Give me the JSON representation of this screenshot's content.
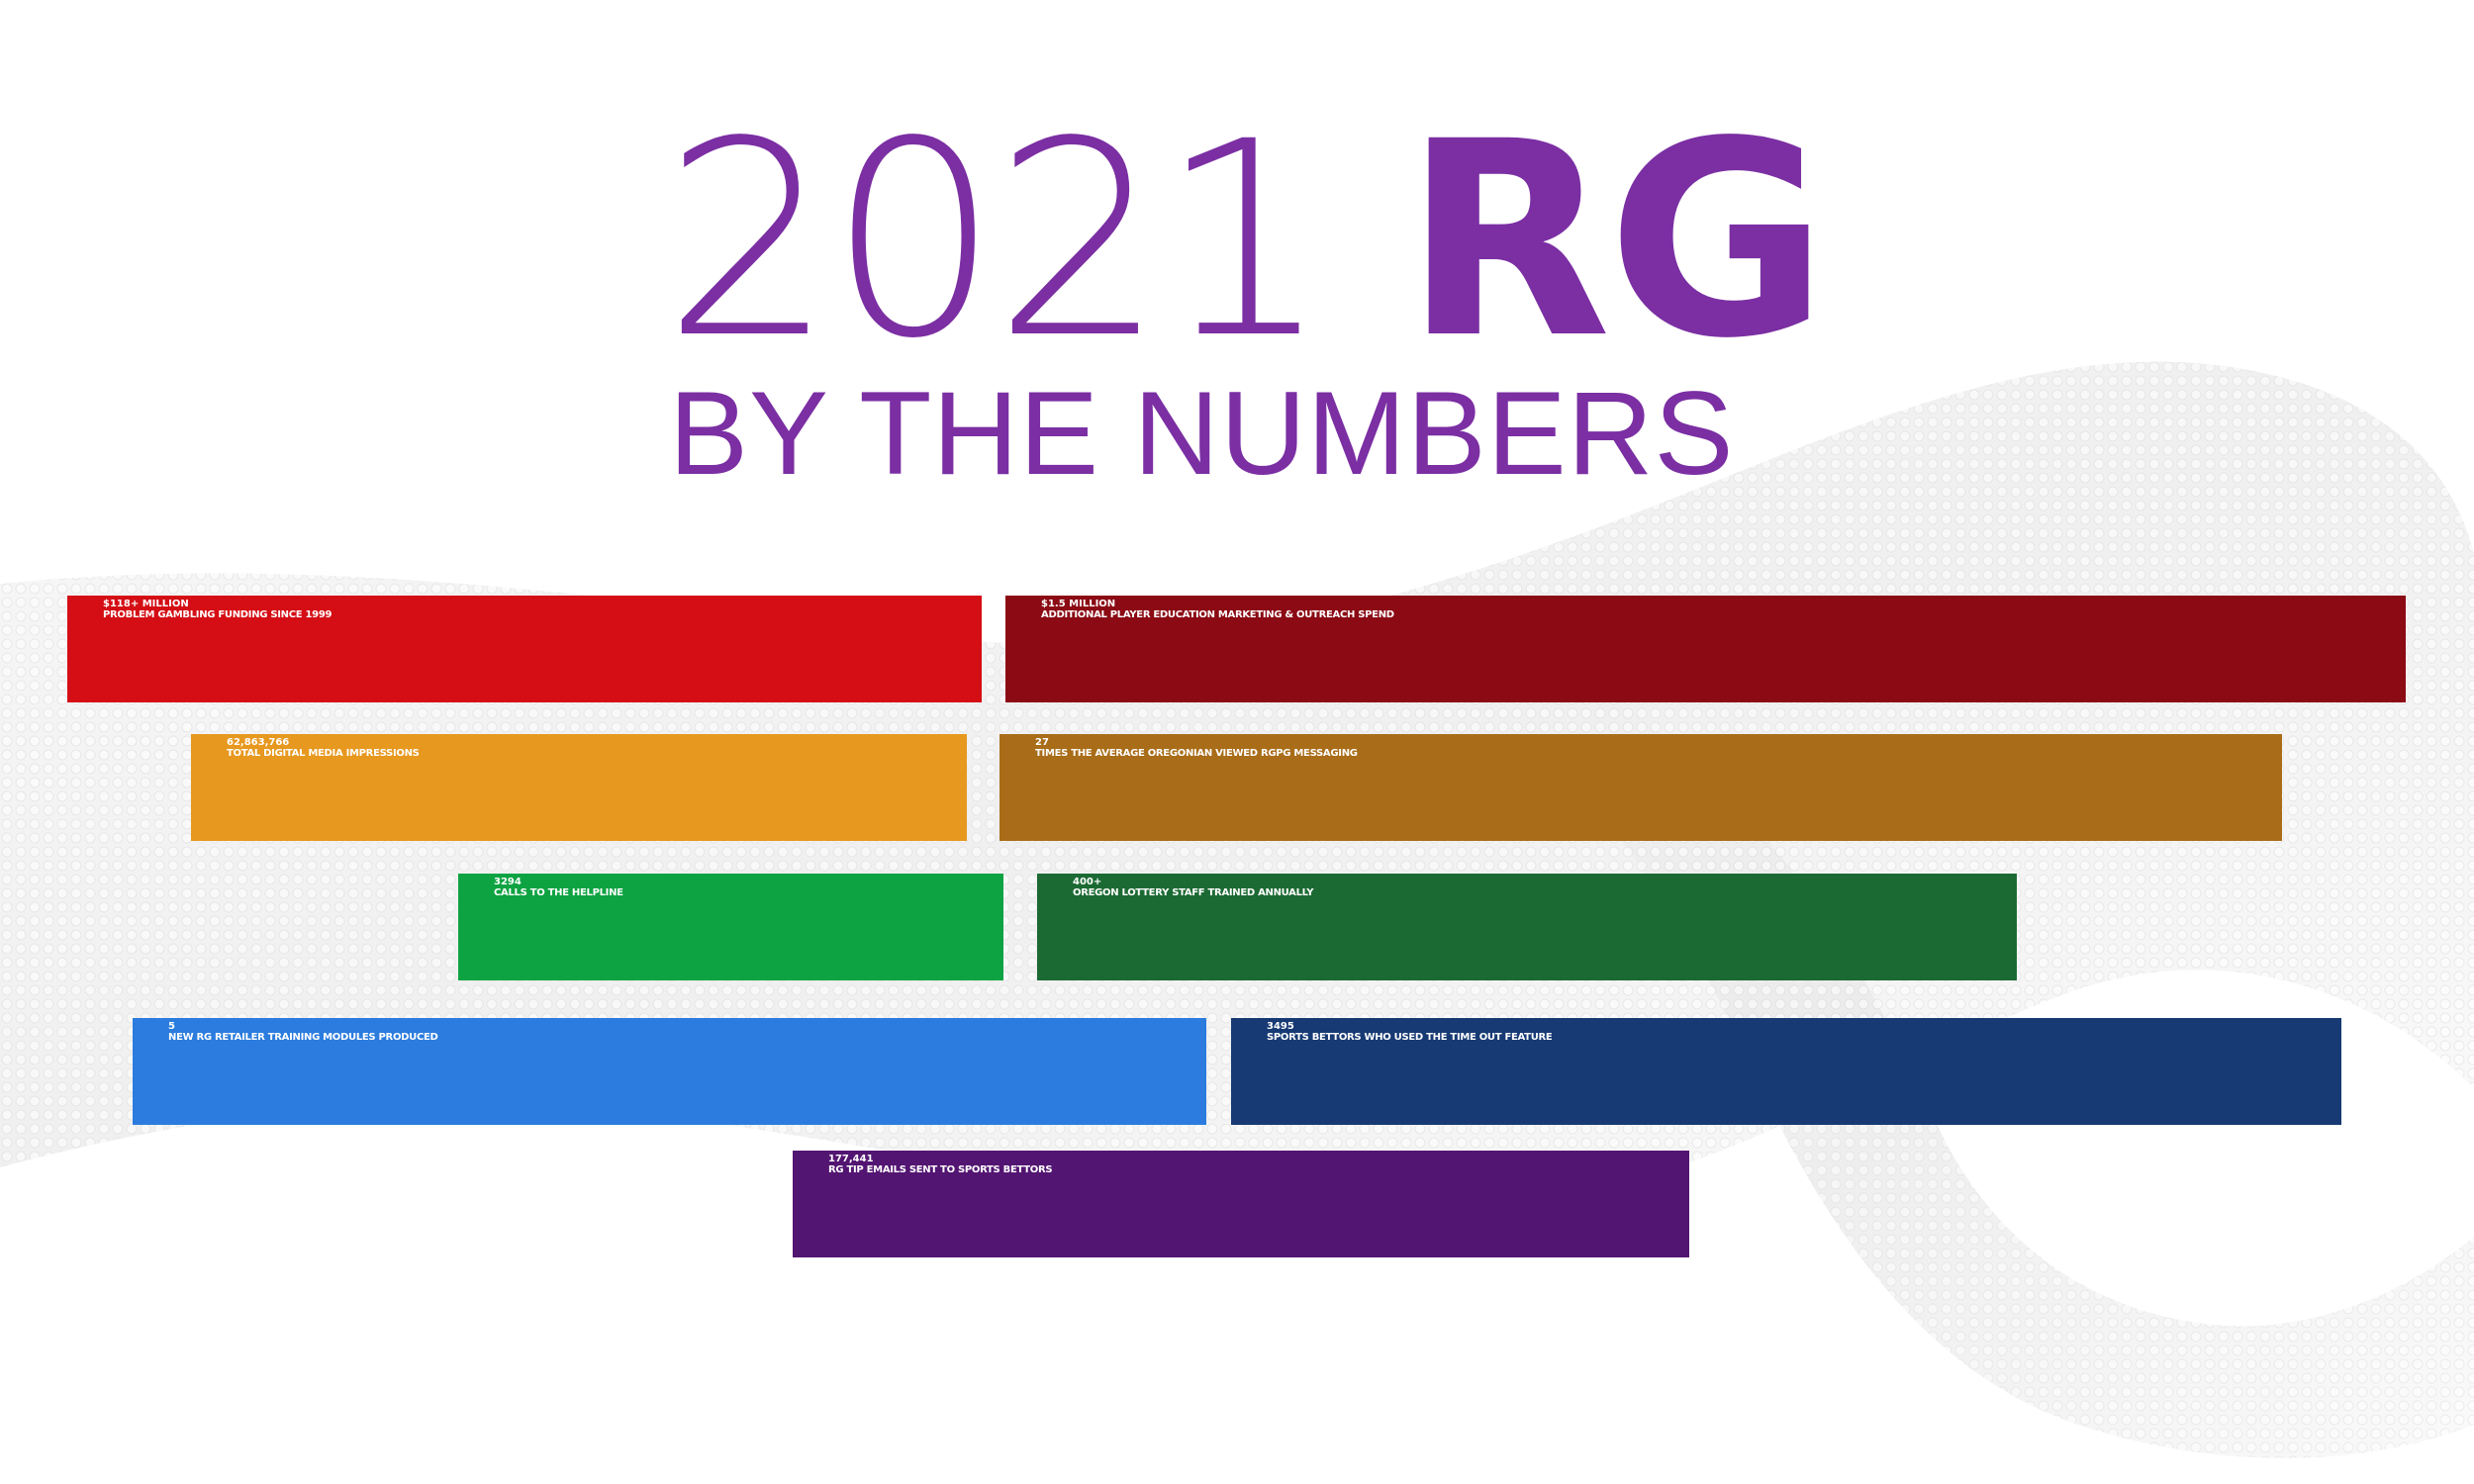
{
  "header": {
    "year": "2021",
    "abbrev": "RG",
    "subtitle": "BY THE NUMBERS"
  },
  "colors": {
    "title": "#7b2fa3",
    "red": "#d40e14",
    "dark_red": "#8b0a14",
    "orange": "#e7981f",
    "brown": "#a96d19",
    "green": "#0ea342",
    "dark_green": "#1c6a33",
    "blue": "#2b7cde",
    "navy": "#173a74",
    "purple": "#531572"
  },
  "stats": [
    {
      "value": "$118+ MILLION",
      "label": "PROBLEM GAMBLING FUNDING SINCE 1999",
      "color": "#d40e14"
    },
    {
      "value": "$1.5 MILLION",
      "label": "ADDITIONAL PLAYER EDUCATION MARKETING & OUTREACH SPEND",
      "color": "#8b0a14"
    },
    {
      "value": "62,863,766",
      "label": "TOTAL DIGITAL MEDIA IMPRESSIONS",
      "color": "#e7981f"
    },
    {
      "value": "27",
      "label": "TIMES THE AVERAGE OREGONIAN VIEWED RGPG MESSAGING",
      "color": "#a96d19"
    },
    {
      "value": "3294",
      "label": "CALLS TO THE HELPLINE",
      "color": "#0ea342"
    },
    {
      "value": "400+",
      "label": "OREGON LOTTERY STAFF TRAINED ANNUALLY",
      "color": "#1c6a33"
    },
    {
      "value": "5",
      "label": "NEW RG RETAILER TRAINING MODULES PRODUCED",
      "color": "#2b7cde"
    },
    {
      "value": "3495",
      "label": "SPORTS BETTORS WHO USED THE TIME OUT FEATURE",
      "color": "#173a74"
    },
    {
      "value": "177,441",
      "label": "RG TIP EMAILS SENT TO SPORTS BETTORS",
      "color": "#531572"
    }
  ]
}
